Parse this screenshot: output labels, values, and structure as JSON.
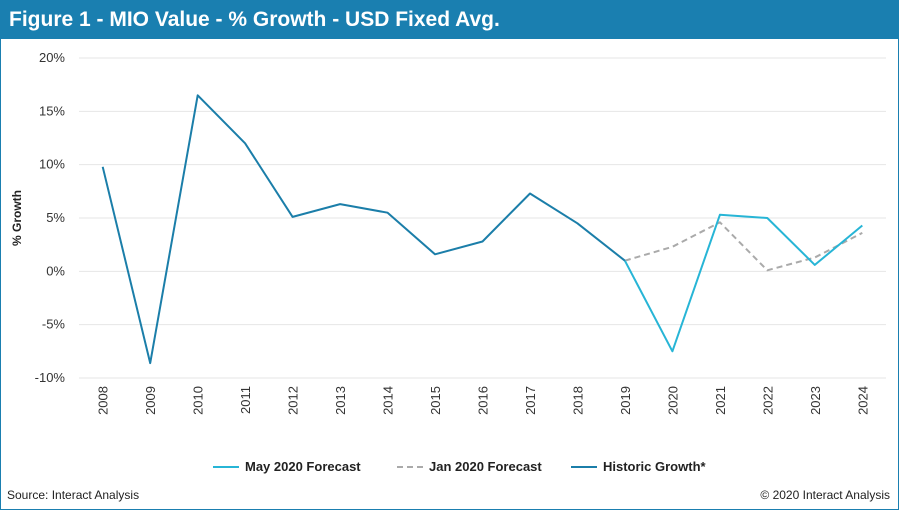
{
  "header": {
    "title": "Figure 1 - MIO Value - % Growth - USD Fixed Avg."
  },
  "footer": {
    "source": "Source: Interact Analysis",
    "copyright": "© 2020 Interact Analysis"
  },
  "colors": {
    "title_bg": "#1a7fb0",
    "may_2020": "#27b5d6",
    "jan_2020": "#aaaaaa",
    "historic": "#1b7ea9",
    "grid": "#e6e6e6"
  },
  "chart_data": {
    "type": "line",
    "title": "Figure 1 - MIO Value - % Growth - USD Fixed Avg.",
    "ylabel": "% Growth",
    "xlabel": "",
    "ylim": [
      -10,
      20
    ],
    "yticks": [
      20,
      15,
      10,
      5,
      0,
      -5,
      -10
    ],
    "ytick_labels": [
      "20%",
      "15%",
      "10%",
      "5%",
      "0%",
      "-5%",
      "-10%"
    ],
    "categories": [
      "2008",
      "2009",
      "2010",
      "2011",
      "2012",
      "2013",
      "2014",
      "2015",
      "2016",
      "2017",
      "2018",
      "2019",
      "2020",
      "2021",
      "2022",
      "2023",
      "2024"
    ],
    "grid": true,
    "legend_position": "bottom",
    "series": [
      {
        "name": "May 2020 Forecast",
        "style": "solid",
        "color": "#27b5d6",
        "x": [
          "2019",
          "2020",
          "2021",
          "2022",
          "2023",
          "2024"
        ],
        "values": [
          1.0,
          -7.5,
          5.3,
          5.0,
          0.6,
          4.3
        ]
      },
      {
        "name": "Jan 2020 Forecast",
        "style": "dashed",
        "color": "#aaaaaa",
        "x": [
          "2019",
          "2020",
          "2021",
          "2022",
          "2023",
          "2024"
        ],
        "values": [
          1.0,
          2.3,
          4.6,
          0.1,
          1.3,
          3.6
        ]
      },
      {
        "name": "Historic Growth*",
        "style": "solid",
        "color": "#1b7ea9",
        "x": [
          "2008",
          "2009",
          "2010",
          "2011",
          "2012",
          "2013",
          "2014",
          "2015",
          "2016",
          "2017",
          "2018",
          "2019"
        ],
        "values": [
          9.8,
          -8.6,
          16.5,
          12.0,
          5.1,
          6.3,
          5.5,
          1.6,
          2.8,
          7.3,
          4.5,
          1.0
        ]
      }
    ]
  }
}
